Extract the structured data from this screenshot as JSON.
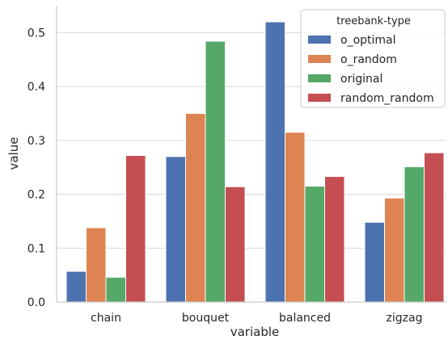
{
  "chart_data": {
    "type": "bar",
    "xlabel": "variable",
    "ylabel": "value",
    "categories": [
      "chain",
      "bouquet",
      "balanced",
      "zigzag"
    ],
    "ylim": [
      0,
      0.55
    ],
    "yticks": [
      "0.0",
      "0.1",
      "0.2",
      "0.3",
      "0.4",
      "0.5"
    ],
    "grid": true,
    "legend": {
      "title": "treebank-type",
      "placement": "top-right"
    },
    "series": [
      {
        "name": "o_optimal",
        "color": "#4c72b0",
        "values": [
          0.057,
          0.27,
          0.52,
          0.148
        ]
      },
      {
        "name": "o_random",
        "color": "#dd8452",
        "values": [
          0.138,
          0.35,
          0.315,
          0.193
        ]
      },
      {
        "name": "original",
        "color": "#55a868",
        "values": [
          0.046,
          0.484,
          0.215,
          0.251
        ]
      },
      {
        "name": "random_random",
        "color": "#c44e52",
        "values": [
          0.272,
          0.214,
          0.233,
          0.277
        ]
      }
    ]
  }
}
